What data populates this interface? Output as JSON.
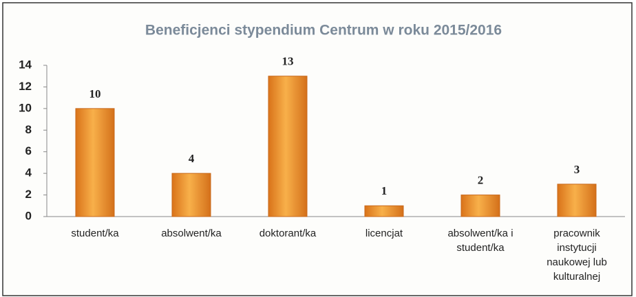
{
  "chart_data": {
    "type": "bar",
    "title": "Beneficjenci stypendium Centrum w roku 2015/2016",
    "categories": [
      "student/ka",
      "absolwent/ka",
      "doktorant/ka",
      "licencjat",
      "absolwent/ka i student/ka",
      "pracownik instytucji naukowej lub kulturalnej"
    ],
    "values": [
      10,
      4,
      13,
      1,
      2,
      3
    ],
    "color": "#f29a2e",
    "ylim": [
      0,
      14
    ],
    "yticks": [
      0,
      2,
      4,
      6,
      8,
      10,
      12,
      14
    ],
    "grid": false
  }
}
